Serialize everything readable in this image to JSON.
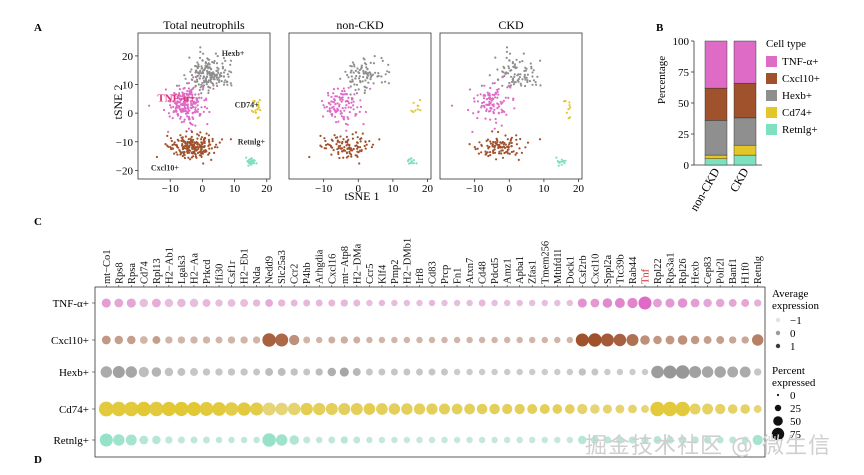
{
  "panel_labels": {
    "a": "A",
    "b": "B",
    "c": "C",
    "d": "D"
  },
  "colors": {
    "TNF-α+": "#de6bc6",
    "Cxcl10+": "#a0522d",
    "Hexb+": "#8f8f8f",
    "Cd74+": "#e2c62a",
    "Retnlg+": "#7fe0c0"
  },
  "chart_data": [
    {
      "type": "scatter",
      "id": "tsne",
      "titles": [
        "Total neutrophils",
        "non-CKD",
        "CKD"
      ],
      "xlabel": "tSNE 1",
      "ylabel": "tSNE 2",
      "xlim": [
        -20,
        21
      ],
      "ylim": [
        -23,
        28
      ],
      "xticks": [
        -10,
        0,
        10,
        20
      ],
      "yticks": [
        20,
        10,
        0,
        -10,
        -20
      ],
      "clusters": [
        {
          "name": "Hexb+",
          "center": [
            2,
            13
          ],
          "spread": [
            6,
            6
          ]
        },
        {
          "name": "TNF-α+",
          "center": [
            -5,
            3
          ],
          "spread": [
            5.5,
            6
          ]
        },
        {
          "name": "Cxcl10+",
          "center": [
            -3,
            -12
          ],
          "spread": [
            7,
            4
          ]
        },
        {
          "name": "Cd74+",
          "center": [
            17,
            2
          ],
          "spread": [
            1.2,
            2.5
          ]
        },
        {
          "name": "Retnlg+",
          "center": [
            15,
            -17
          ],
          "spread": [
            1.5,
            1.5
          ]
        }
      ],
      "cluster_labels": [
        {
          "text": "Hexb+",
          "at": [
            6,
            20
          ]
        },
        {
          "text": "TNF-α+",
          "at": [
            -14,
            4
          ]
        },
        {
          "text": "CD74+",
          "at": [
            10,
            2
          ]
        },
        {
          "text": "Retnlg+",
          "at": [
            11,
            -11
          ]
        },
        {
          "text": "Cxcl10+",
          "at": [
            -16,
            -20
          ]
        }
      ]
    },
    {
      "type": "bar",
      "id": "proportion",
      "stacked": true,
      "categories": [
        "non-CKD",
        "CKD"
      ],
      "ylabel": "Percentage",
      "ylim": [
        0,
        100
      ],
      "yticks": [
        0,
        25,
        50,
        75,
        100
      ],
      "legend_title": "Cell type",
      "series": [
        {
          "name": "Retnlg+",
          "values": [
            5,
            8
          ]
        },
        {
          "name": "Cd74+",
          "values": [
            3,
            8
          ]
        },
        {
          "name": "Hexb+",
          "values": [
            28,
            22
          ]
        },
        {
          "name": "Cxcl10+",
          "values": [
            26,
            28
          ]
        },
        {
          "name": "TNF-α+",
          "values": [
            38,
            34
          ]
        }
      ]
    },
    {
      "type": "scatter",
      "id": "dotplot",
      "genes": [
        "mt−Co1",
        "Rps8",
        "Rpsa",
        "Cd74",
        "Rpl13",
        "H2−Ab1",
        "Lgals3",
        "H2−Aa",
        "Prkcd",
        "Ifi30",
        "Csf1r",
        "H2−Eb1",
        "Nda",
        "Nedd9",
        "Slc25a3",
        "Ccr2",
        "P4hb",
        "Arhgdia",
        "Cxcl16",
        "mt−Atp8",
        "H2−DMa",
        "Ccr5",
        "Klf4",
        "Pmp2",
        "H2−DMb1",
        "Irf8",
        "Cd83",
        "Prcp",
        "Fn1",
        "Atxn7",
        "Cd48",
        "Pdcd5",
        "Amz1",
        "Apba1",
        "Zfas1",
        "Tmem256",
        "Mthfd1l",
        "Dock1",
        "Csf2rb",
        "Cxcl10",
        "Sppl2a",
        "Ttc39b",
        "Rab44",
        "Tnf",
        "Rpl22",
        "Rps3a1",
        "Rpl26",
        "Hexb",
        "Cep83",
        "Polr2l",
        "Banf1",
        "H1f0",
        "Retnlg"
      ],
      "highlight_genes": [
        "Tnf"
      ],
      "rows": [
        "TNF-α+",
        "Cxcl10+",
        "Hexb+",
        "Cd74+",
        "Retnlg+"
      ],
      "percent_expressed": [
        [
          22,
          20,
          22,
          18,
          20,
          18,
          18,
          18,
          15,
          12,
          14,
          15,
          12,
          14,
          12,
          10,
          10,
          10,
          10,
          12,
          10,
          8,
          8,
          8,
          8,
          8,
          8,
          8,
          8,
          8,
          10,
          8,
          8,
          8,
          8,
          8,
          8,
          8,
          22,
          20,
          25,
          28,
          30,
          55,
          20,
          22,
          25,
          20,
          18,
          18,
          15,
          15,
          12
        ],
        [
          20,
          18,
          18,
          14,
          15,
          12,
          12,
          12,
          12,
          10,
          12,
          12,
          12,
          60,
          55,
          30,
          10,
          8,
          10,
          12,
          10,
          8,
          8,
          8,
          8,
          8,
          8,
          8,
          8,
          8,
          8,
          8,
          8,
          8,
          8,
          8,
          8,
          8,
          55,
          60,
          55,
          50,
          45,
          25,
          18,
          20,
          25,
          18,
          15,
          15,
          12,
          12,
          40
        ],
        [
          40,
          45,
          40,
          30,
          25,
          18,
          15,
          15,
          12,
          12,
          12,
          12,
          10,
          15,
          15,
          12,
          10,
          12,
          18,
          22,
          15,
          10,
          10,
          10,
          10,
          10,
          10,
          10,
          8,
          8,
          8,
          8,
          8,
          8,
          8,
          8,
          8,
          8,
          12,
          10,
          8,
          8,
          8,
          8,
          50,
          55,
          60,
          45,
          40,
          40,
          35,
          35,
          12
        ],
        [
          75,
          70,
          72,
          70,
          70,
          68,
          68,
          66,
          65,
          62,
          60,
          58,
          55,
          55,
          50,
          50,
          48,
          48,
          45,
          45,
          45,
          42,
          42,
          40,
          40,
          38,
          38,
          36,
          34,
          34,
          32,
          32,
          30,
          30,
          28,
          28,
          26,
          26,
          30,
          25,
          22,
          20,
          20,
          15,
          70,
          70,
          70,
          35,
          35,
          30,
          25,
          25,
          15
        ],
        [
          55,
          40,
          35,
          20,
          18,
          12,
          10,
          10,
          10,
          8,
          8,
          8,
          8,
          60,
          40,
          25,
          10,
          8,
          10,
          12,
          10,
          8,
          8,
          8,
          8,
          8,
          8,
          8,
          8,
          8,
          8,
          8,
          8,
          8,
          8,
          8,
          8,
          8,
          18,
          15,
          12,
          12,
          12,
          12,
          15,
          12,
          15,
          12,
          12,
          10,
          10,
          10,
          30
        ]
      ],
      "average_expression": [
        [
          0.2,
          0.1,
          0.1,
          -0.3,
          0.0,
          -0.3,
          -0.2,
          -0.3,
          -0.2,
          -0.3,
          -0.3,
          -0.3,
          -0.2,
          0.0,
          -0.2,
          -0.2,
          -0.2,
          -0.2,
          -0.2,
          -0.2,
          -0.2,
          -0.3,
          -0.2,
          -0.3,
          -0.3,
          -0.3,
          -0.2,
          -0.3,
          -0.3,
          -0.3,
          -0.2,
          -0.3,
          -0.3,
          -0.3,
          -0.3,
          -0.3,
          -0.3,
          -0.3,
          0.4,
          0.3,
          0.5,
          0.6,
          0.6,
          1.0,
          0.2,
          0.3,
          0.4,
          0.2,
          0.1,
          0.1,
          0.1,
          0.1,
          -0.1
        ],
        [
          0.1,
          0.0,
          0.0,
          -0.3,
          0.0,
          -0.3,
          -0.3,
          -0.3,
          -0.3,
          -0.3,
          -0.3,
          -0.3,
          -0.3,
          0.8,
          0.7,
          0.2,
          -0.3,
          -0.3,
          -0.2,
          -0.2,
          -0.2,
          -0.3,
          -0.3,
          -0.3,
          -0.3,
          -0.3,
          -0.3,
          -0.3,
          -0.3,
          -0.3,
          -0.3,
          -0.3,
          -0.3,
          -0.3,
          -0.3,
          -0.3,
          -0.3,
          -0.3,
          1.0,
          1.0,
          0.9,
          0.8,
          0.6,
          0.2,
          0.1,
          0.1,
          0.2,
          0.1,
          0.0,
          0.0,
          -0.1,
          -0.1,
          0.4
        ],
        [
          0.4,
          0.6,
          0.5,
          0.0,
          0.2,
          -0.1,
          -0.1,
          -0.2,
          -0.2,
          -0.2,
          -0.2,
          -0.2,
          -0.2,
          0.0,
          0.0,
          -0.1,
          -0.2,
          0.0,
          0.3,
          0.5,
          0.1,
          -0.2,
          -0.2,
          -0.2,
          -0.2,
          -0.2,
          -0.2,
          -0.2,
          -0.3,
          -0.3,
          -0.3,
          -0.3,
          -0.3,
          -0.3,
          -0.3,
          -0.3,
          -0.3,
          -0.3,
          -0.1,
          -0.2,
          -0.3,
          -0.3,
          -0.3,
          -0.3,
          0.7,
          0.8,
          0.8,
          0.6,
          0.5,
          0.5,
          0.4,
          0.4,
          -0.2
        ],
        [
          0.8,
          0.8,
          0.8,
          0.9,
          0.8,
          0.9,
          0.9,
          0.9,
          0.8,
          0.8,
          0.7,
          0.8,
          0.7,
          0.2,
          0.2,
          0.3,
          0.6,
          0.5,
          0.5,
          0.5,
          0.5,
          0.6,
          0.5,
          0.5,
          0.5,
          0.5,
          0.5,
          0.5,
          0.5,
          0.5,
          0.5,
          0.5,
          0.5,
          0.5,
          0.5,
          0.5,
          0.5,
          0.5,
          0.3,
          0.2,
          0.3,
          0.3,
          0.3,
          0.2,
          0.8,
          0.8,
          0.8,
          0.4,
          0.4,
          0.4,
          0.4,
          0.4,
          0.2
        ],
        [
          0.6,
          0.4,
          0.3,
          0.0,
          0.0,
          -0.2,
          -0.2,
          -0.2,
          -0.2,
          -0.2,
          -0.2,
          -0.2,
          -0.2,
          0.6,
          0.4,
          0.1,
          -0.2,
          -0.2,
          -0.2,
          -0.1,
          -0.2,
          -0.3,
          -0.3,
          -0.3,
          -0.3,
          -0.3,
          -0.3,
          -0.3,
          -0.3,
          -0.3,
          -0.3,
          -0.3,
          -0.3,
          -0.3,
          -0.3,
          -0.3,
          -0.3,
          -0.3,
          0.0,
          0.0,
          -0.1,
          -0.1,
          -0.1,
          -0.1,
          0.0,
          0.0,
          0.0,
          -0.1,
          -0.1,
          -0.1,
          -0.1,
          -0.1,
          0.3
        ]
      ],
      "legend_avg_title": [
        "Average",
        "expression"
      ],
      "legend_avg_values": [
        "−1",
        "0",
        "1"
      ],
      "legend_pct_title": [
        "Percent",
        "expressed"
      ],
      "legend_pct_values": [
        "0",
        "25",
        "50",
        "75"
      ]
    }
  ],
  "watermark": "掘金技术社区 @ 微生信"
}
